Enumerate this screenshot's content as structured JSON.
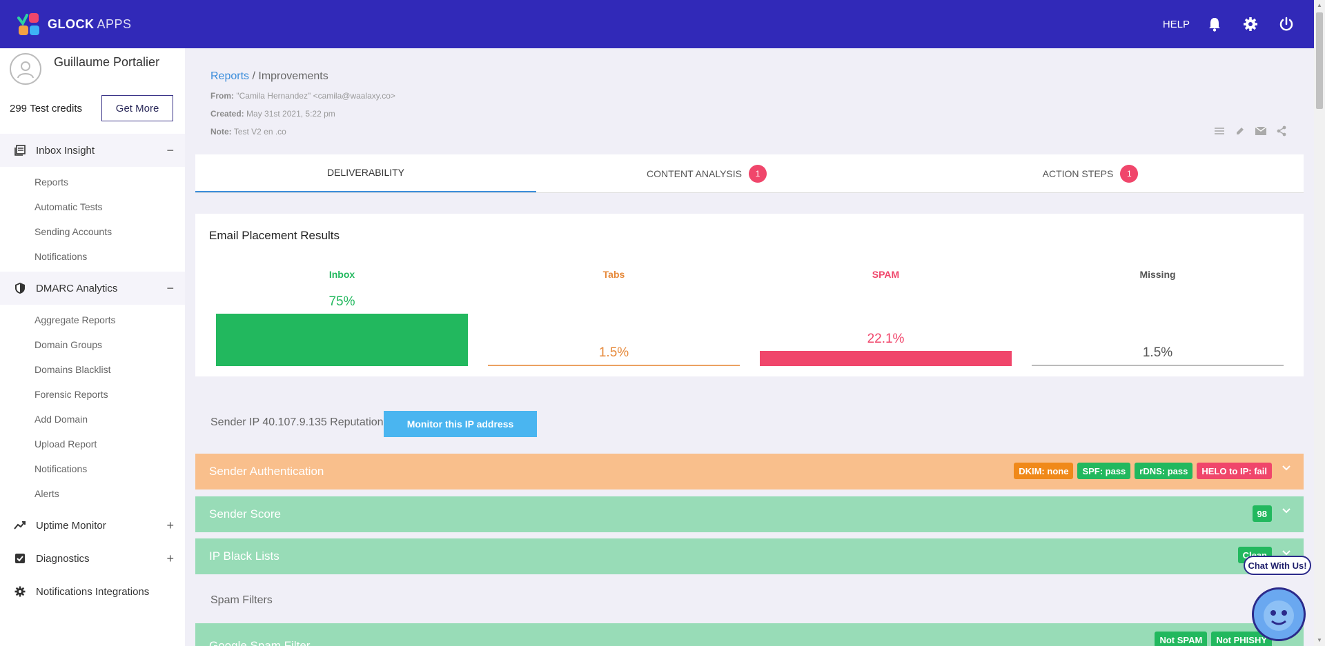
{
  "app": {
    "brand": "GLOCK",
    "brand_suffix": "APPS"
  },
  "topbar": {
    "help": "HELP"
  },
  "user": {
    "name": "Guillaume Portalier",
    "credits_count": "299",
    "credits_label": "Test credits",
    "get_more": "Get More"
  },
  "sidebar": {
    "inbox_insight": {
      "label": "Inbox Insight",
      "toggle": "−",
      "items": [
        "Reports",
        "Automatic Tests",
        "Sending Accounts",
        "Notifications"
      ]
    },
    "dmarc": {
      "label": "DMARC Analytics",
      "toggle": "−",
      "items": [
        "Aggregate Reports",
        "Domain Groups",
        "Domains Blacklist",
        "Forensic Reports",
        "Add Domain",
        "Upload Report",
        "Notifications",
        "Alerts"
      ]
    },
    "uptime": {
      "label": "Uptime Monitor",
      "toggle": "+"
    },
    "diagnostics": {
      "label": "Diagnostics",
      "toggle": "+"
    },
    "notif_integrations": {
      "label": "Notifications Integrations"
    }
  },
  "breadcrumb": {
    "parent": "Reports",
    "sep": " / ",
    "current": "Improvements"
  },
  "meta": {
    "from_label": "From:",
    "from_value": "\"Camila Hernandez\" <camila@waalaxy.co>",
    "created_label": "Created:",
    "created_value": "May 31st 2021, 5:22 pm",
    "note_label": "Note:",
    "note_value": "Test V2 en .co"
  },
  "tabs": [
    {
      "label": "DELIVERABILITY"
    },
    {
      "label": "CONTENT ANALYSIS",
      "badge": "1"
    },
    {
      "label": "ACTION STEPS",
      "badge": "1"
    }
  ],
  "placement": {
    "title": "Email Placement Results",
    "columns": [
      {
        "name": "Inbox",
        "value": 75,
        "label": "75%",
        "color": "#22b85e"
      },
      {
        "name": "Tabs",
        "value": 1.5,
        "label": "1.5%",
        "color": "#e6893a"
      },
      {
        "name": "SPAM",
        "value": 22.1,
        "label": "22.1%",
        "color": "#f0466b"
      },
      {
        "name": "Missing",
        "value": 1.5,
        "label": "1.5%",
        "color": "#555555"
      }
    ]
  },
  "sender_ip": {
    "text": "Sender IP 40.107.9.135 Reputation",
    "button": "Monitor this IP address"
  },
  "panels": {
    "auth": {
      "title": "Sender Authentication",
      "badges": [
        {
          "text": "DKIM: none",
          "tone": "orange"
        },
        {
          "text": "SPF: pass",
          "tone": "green"
        },
        {
          "text": "rDNS: pass",
          "tone": "green"
        },
        {
          "text": "HELO to IP: fail",
          "tone": "red"
        }
      ]
    },
    "score": {
      "title": "Sender Score",
      "badge": "98"
    },
    "blacklists": {
      "title": "IP Black Lists",
      "badge": "Clean"
    },
    "spam_filters_label": "Spam Filters",
    "google": {
      "title": "Google Spam Filter",
      "badges": [
        "Not SPAM",
        "Not PHISHY"
      ]
    }
  },
  "chat": {
    "label": "Chat With Us!"
  }
}
